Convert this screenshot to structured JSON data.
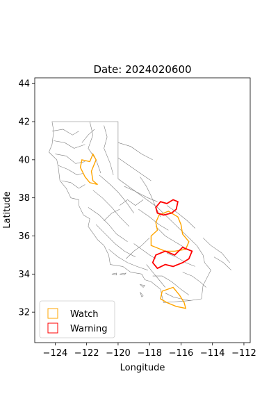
{
  "chart_data": {
    "type": "map",
    "title": "Date: 2024020600",
    "xlabel": "Longitude",
    "ylabel": "Latitude",
    "xlim": [
      -125.3,
      -111.6
    ],
    "ylim": [
      30.4,
      44.3
    ],
    "xticks": [
      -124,
      -122,
      -120,
      -118,
      -116,
      -114,
      -112
    ],
    "xtick_labels": [
      "−124",
      "−122",
      "−120",
      "−118",
      "−116",
      "−114",
      "−112"
    ],
    "yticks": [
      32,
      34,
      36,
      38,
      40,
      42,
      44
    ],
    "ytick_labels": [
      "32",
      "34",
      "36",
      "38",
      "40",
      "42",
      "44"
    ],
    "grid": false,
    "legend": {
      "placement": "lower-left",
      "entries": [
        {
          "label": "Watch",
          "color": "#FFA500"
        },
        {
          "label": "Warning",
          "color": "#FF0000"
        }
      ]
    },
    "outline": [
      [
        -124.2,
        42.0
      ],
      [
        -123.0,
        42.0
      ],
      [
        -121.5,
        42.0
      ],
      [
        -120.0,
        42.0
      ],
      [
        -120.0,
        39.0
      ],
      [
        -117.5,
        37.5
      ],
      [
        -115.0,
        35.5
      ],
      [
        -114.6,
        35.0
      ],
      [
        -114.5,
        34.6
      ],
      [
        -114.1,
        34.2
      ],
      [
        -114.6,
        33.4
      ],
      [
        -114.7,
        32.7
      ],
      [
        -115.5,
        32.6
      ],
      [
        -117.1,
        32.5
      ],
      [
        -117.2,
        32.8
      ],
      [
        -117.3,
        33.2
      ],
      [
        -117.9,
        33.6
      ],
      [
        -118.3,
        33.7
      ],
      [
        -118.5,
        34.0
      ],
      [
        -119.2,
        34.1
      ],
      [
        -119.7,
        34.4
      ],
      [
        -120.5,
        34.5
      ],
      [
        -120.6,
        35.0
      ],
      [
        -120.9,
        35.5
      ],
      [
        -121.3,
        35.8
      ],
      [
        -121.9,
        36.5
      ],
      [
        -121.8,
        36.9
      ],
      [
        -122.2,
        37.1
      ],
      [
        -122.5,
        37.6
      ],
      [
        -122.5,
        37.9
      ],
      [
        -123.0,
        38.0
      ],
      [
        -123.3,
        38.5
      ],
      [
        -123.7,
        38.9
      ],
      [
        -123.8,
        39.6
      ],
      [
        -123.9,
        40.0
      ],
      [
        -124.4,
        40.4
      ],
      [
        -124.2,
        40.8
      ],
      [
        -124.1,
        41.5
      ],
      [
        -124.2,
        42.0
      ]
    ],
    "basin_lines": [
      [
        [
          -124.2,
          41.5
        ],
        [
          -123.5,
          41.6
        ],
        [
          -122.9,
          41.3
        ],
        [
          -122.5,
          41.5
        ]
      ],
      [
        [
          -124.1,
          41.0
        ],
        [
          -123.4,
          40.9
        ],
        [
          -122.8,
          40.6
        ],
        [
          -122.1,
          40.8
        ]
      ],
      [
        [
          -124.0,
          40.3
        ],
        [
          -123.3,
          40.2
        ],
        [
          -122.7,
          39.8
        ],
        [
          -122.1,
          39.9
        ]
      ],
      [
        [
          -123.8,
          39.7
        ],
        [
          -123.2,
          39.5
        ],
        [
          -122.6,
          39.2
        ],
        [
          -122.2,
          39.3
        ]
      ],
      [
        [
          -123.6,
          38.9
        ],
        [
          -123.0,
          38.8
        ],
        [
          -122.5,
          38.5
        ],
        [
          -122.1,
          38.7
        ]
      ],
      [
        [
          -121.8,
          42.0
        ],
        [
          -121.6,
          41.3
        ],
        [
          -121.9,
          40.6
        ],
        [
          -121.4,
          40.0
        ],
        [
          -121.1,
          39.3
        ]
      ],
      [
        [
          -120.9,
          41.8
        ],
        [
          -120.7,
          41.2
        ],
        [
          -120.9,
          40.6
        ],
        [
          -120.5,
          39.8
        ],
        [
          -120.3,
          39.2
        ]
      ],
      [
        [
          -121.2,
          39.2
        ],
        [
          -120.5,
          38.7
        ],
        [
          -120.0,
          38.3
        ],
        [
          -119.5,
          37.8
        ],
        [
          -119.0,
          37.2
        ]
      ],
      [
        [
          -121.6,
          38.4
        ],
        [
          -121.0,
          38.0
        ],
        [
          -120.4,
          37.5
        ],
        [
          -119.9,
          37.0
        ],
        [
          -119.3,
          36.5
        ]
      ],
      [
        [
          -121.9,
          37.5
        ],
        [
          -121.2,
          37.1
        ],
        [
          -120.6,
          36.6
        ],
        [
          -120.1,
          36.1
        ],
        [
          -119.4,
          35.7
        ]
      ],
      [
        [
          -121.4,
          36.6
        ],
        [
          -120.8,
          36.1
        ],
        [
          -120.2,
          35.6
        ],
        [
          -119.6,
          35.2
        ],
        [
          -118.9,
          34.9
        ]
      ],
      [
        [
          -120.6,
          35.3
        ],
        [
          -120.0,
          34.9
        ],
        [
          -119.4,
          34.6
        ],
        [
          -118.8,
          34.4
        ],
        [
          -118.1,
          34.2
        ]
      ],
      [
        [
          -119.0,
          35.6
        ],
        [
          -118.5,
          35.3
        ],
        [
          -118.0,
          35.0
        ],
        [
          -117.6,
          34.8
        ]
      ],
      [
        [
          -118.2,
          34.5
        ],
        [
          -117.8,
          34.1
        ],
        [
          -117.4,
          33.7
        ],
        [
          -117.0,
          33.3
        ]
      ],
      [
        [
          -117.8,
          33.9
        ],
        [
          -117.2,
          33.9
        ],
        [
          -116.6,
          33.6
        ],
        [
          -116.0,
          33.2
        ],
        [
          -115.5,
          32.9
        ]
      ],
      [
        [
          -117.0,
          33.0
        ],
        [
          -116.5,
          32.8
        ],
        [
          -116.0,
          32.7
        ],
        [
          -115.4,
          32.6
        ]
      ],
      [
        [
          -120.0,
          40.9
        ],
        [
          -119.2,
          40.7
        ],
        [
          -118.5,
          40.3
        ],
        [
          -117.8,
          40.0
        ]
      ],
      [
        [
          -120.0,
          40.1
        ],
        [
          -119.3,
          39.7
        ],
        [
          -118.6,
          39.3
        ],
        [
          -117.9,
          38.9
        ]
      ],
      [
        [
          -119.6,
          38.6
        ],
        [
          -118.8,
          38.3
        ],
        [
          -118.1,
          38.0
        ],
        [
          -117.5,
          37.8
        ]
      ],
      [
        [
          -118.7,
          37.4
        ],
        [
          -118.0,
          37.0
        ],
        [
          -117.4,
          36.6
        ],
        [
          -116.8,
          36.3
        ]
      ],
      [
        [
          -117.6,
          36.5
        ],
        [
          -117.0,
          36.0
        ],
        [
          -116.4,
          35.7
        ],
        [
          -115.8,
          35.4
        ]
      ],
      [
        [
          -116.9,
          35.1
        ],
        [
          -116.3,
          34.9
        ],
        [
          -115.7,
          34.6
        ],
        [
          -115.1,
          34.4
        ]
      ],
      [
        [
          -115.9,
          34.1
        ],
        [
          -115.3,
          33.9
        ],
        [
          -114.8,
          33.6
        ],
        [
          -114.4,
          33.3
        ]
      ],
      [
        [
          -118.6,
          39.1
        ],
        [
          -118.2,
          38.6
        ],
        [
          -117.9,
          38.1
        ],
        [
          -117.6,
          37.5
        ],
        [
          -117.3,
          37.0
        ]
      ],
      [
        [
          -116.9,
          37.6
        ],
        [
          -116.2,
          37.2
        ],
        [
          -115.6,
          36.8
        ],
        [
          -115.1,
          36.4
        ]
      ],
      [
        [
          -114.6,
          35.9
        ],
        [
          -114.1,
          35.5
        ],
        [
          -113.4,
          35.1
        ],
        [
          -112.9,
          34.6
        ]
      ],
      [
        [
          -113.9,
          34.9
        ],
        [
          -113.3,
          34.6
        ],
        [
          -112.8,
          34.2
        ]
      ],
      [
        [
          -119.9,
          37.6
        ],
        [
          -119.4,
          37.9
        ],
        [
          -118.9,
          37.6
        ],
        [
          -118.4,
          37.9
        ]
      ],
      [
        [
          -120.9,
          36.8
        ],
        [
          -120.4,
          37.2
        ],
        [
          -119.9,
          37.4
        ]
      ],
      [
        [
          -122.3,
          40.9
        ],
        [
          -121.9,
          41.3
        ],
        [
          -121.5,
          41.6
        ]
      ],
      [
        [
          -119.5,
          34.8
        ],
        [
          -119.0,
          35.2
        ],
        [
          -118.5,
          35.5
        ],
        [
          -118.0,
          35.9
        ]
      ]
    ],
    "islands": [
      [
        [
          -119.9,
          34.0
        ],
        [
          -119.5,
          34.05
        ],
        [
          -119.6,
          33.95
        ],
        [
          -119.9,
          34.0
        ]
      ],
      [
        [
          -120.4,
          34.0
        ],
        [
          -120.1,
          34.05
        ],
        [
          -120.1,
          33.95
        ],
        [
          -120.4,
          34.0
        ]
      ],
      [
        [
          -118.6,
          33.45
        ],
        [
          -118.3,
          33.4
        ],
        [
          -118.4,
          33.3
        ],
        [
          -118.6,
          33.45
        ]
      ],
      [
        [
          -118.6,
          33.05
        ],
        [
          -118.4,
          32.85
        ],
        [
          -118.5,
          32.8
        ],
        [
          -118.6,
          33.05
        ]
      ]
    ],
    "watch_areas": [
      [
        [
          -122.3,
          40.0
        ],
        [
          -121.8,
          39.9
        ],
        [
          -121.6,
          40.3
        ],
        [
          -121.4,
          40.0
        ],
        [
          -121.7,
          39.4
        ],
        [
          -121.6,
          38.9
        ],
        [
          -121.3,
          38.7
        ],
        [
          -121.8,
          38.8
        ],
        [
          -122.1,
          39.1
        ],
        [
          -122.4,
          39.6
        ],
        [
          -122.3,
          40.0
        ]
      ],
      [
        [
          -117.4,
          37.1
        ],
        [
          -116.8,
          37.3
        ],
        [
          -116.2,
          37.0
        ],
        [
          -116.0,
          36.6
        ],
        [
          -115.9,
          36.1
        ],
        [
          -115.5,
          35.7
        ],
        [
          -115.7,
          35.3
        ],
        [
          -116.4,
          35.2
        ],
        [
          -117.0,
          35.2
        ],
        [
          -117.6,
          35.4
        ],
        [
          -117.9,
          35.5
        ],
        [
          -117.9,
          36.0
        ],
        [
          -117.5,
          36.3
        ],
        [
          -117.6,
          36.7
        ],
        [
          -117.4,
          37.1
        ]
      ],
      [
        [
          -117.2,
          33.1
        ],
        [
          -116.5,
          33.3
        ],
        [
          -116.1,
          32.9
        ],
        [
          -115.8,
          32.5
        ],
        [
          -115.7,
          32.2
        ],
        [
          -116.3,
          32.3
        ],
        [
          -116.9,
          32.5
        ],
        [
          -117.3,
          32.7
        ],
        [
          -117.2,
          33.1
        ]
      ]
    ],
    "warning_areas": [
      [
        [
          -117.6,
          37.5
        ],
        [
          -117.3,
          37.8
        ],
        [
          -116.9,
          37.7
        ],
        [
          -116.5,
          37.9
        ],
        [
          -116.2,
          37.8
        ],
        [
          -116.3,
          37.4
        ],
        [
          -116.6,
          37.2
        ],
        [
          -117.1,
          37.1
        ],
        [
          -117.5,
          37.2
        ],
        [
          -117.6,
          37.5
        ]
      ],
      [
        [
          -117.6,
          35.0
        ],
        [
          -117.0,
          35.2
        ],
        [
          -116.4,
          35.0
        ],
        [
          -115.9,
          35.4
        ],
        [
          -115.3,
          35.2
        ],
        [
          -115.5,
          34.8
        ],
        [
          -115.9,
          34.6
        ],
        [
          -116.5,
          34.4
        ],
        [
          -117.0,
          34.5
        ],
        [
          -117.5,
          34.3
        ],
        [
          -117.8,
          34.6
        ],
        [
          -117.6,
          35.0
        ]
      ]
    ]
  }
}
